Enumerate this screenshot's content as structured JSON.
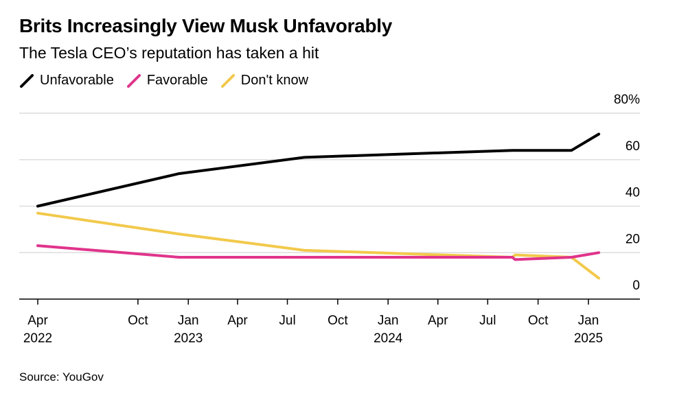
{
  "title": "Brits Increasingly View Musk Unfavorably",
  "subtitle": "The Tesla CEO’s reputation has taken a hit",
  "source": "Source: YouGov",
  "chart_data": {
    "type": "line",
    "x_axis": {
      "type": "date",
      "range": [
        "2022-03-01",
        "2025-03-31"
      ],
      "ticks": [
        {
          "date": "2022-04-01",
          "label": "Apr",
          "year": "2022"
        },
        {
          "date": "2022-10-01",
          "label": "Oct",
          "year": ""
        },
        {
          "date": "2023-01-01",
          "label": "Jan",
          "year": "2023"
        },
        {
          "date": "2023-04-01",
          "label": "Apr",
          "year": ""
        },
        {
          "date": "2023-07-01",
          "label": "Jul",
          "year": ""
        },
        {
          "date": "2023-10-01",
          "label": "Oct",
          "year": ""
        },
        {
          "date": "2024-01-01",
          "label": "Jan",
          "year": "2024"
        },
        {
          "date": "2024-04-01",
          "label": "Apr",
          "year": ""
        },
        {
          "date": "2024-07-01",
          "label": "Jul",
          "year": ""
        },
        {
          "date": "2024-10-01",
          "label": "Oct",
          "year": ""
        },
        {
          "date": "2025-01-01",
          "label": "Jan",
          "year": "2025"
        }
      ]
    },
    "y_axis": {
      "range": [
        0,
        80
      ],
      "ticks": [
        {
          "value": 0,
          "label": "0"
        },
        {
          "value": 20,
          "label": "20"
        },
        {
          "value": 40,
          "label": "40"
        },
        {
          "value": 60,
          "label": "60"
        },
        {
          "value": 80,
          "label": "80%"
        }
      ],
      "position": "right",
      "grid": true
    },
    "legend_position": "top-left",
    "series": [
      {
        "name": "Unfavorable",
        "color": "#000000",
        "points": [
          {
            "x": "2022-04-01",
            "y": 40
          },
          {
            "x": "2022-12-15",
            "y": 54
          },
          {
            "x": "2023-08-01",
            "y": 61
          },
          {
            "x": "2024-08-15",
            "y": 64
          },
          {
            "x": "2024-12-01",
            "y": 64
          },
          {
            "x": "2025-01-20",
            "y": 71
          }
        ]
      },
      {
        "name": "Favorable",
        "color": "#e0348c",
        "points": [
          {
            "x": "2022-04-01",
            "y": 23
          },
          {
            "x": "2022-12-15",
            "y": 18
          },
          {
            "x": "2023-08-01",
            "y": 18
          },
          {
            "x": "2024-08-15",
            "y": 18
          },
          {
            "x": "2024-08-20",
            "y": 17
          },
          {
            "x": "2024-12-01",
            "y": 18
          },
          {
            "x": "2025-01-20",
            "y": 20
          }
        ]
      },
      {
        "name": "Don't know",
        "color": "#f2c94c",
        "points": [
          {
            "x": "2022-04-01",
            "y": 37
          },
          {
            "x": "2022-12-15",
            "y": 28
          },
          {
            "x": "2023-08-01",
            "y": 21
          },
          {
            "x": "2024-08-15",
            "y": 18
          },
          {
            "x": "2024-08-20",
            "y": 19
          },
          {
            "x": "2024-12-01",
            "y": 18
          },
          {
            "x": "2025-01-20",
            "y": 9
          }
        ]
      }
    ]
  }
}
